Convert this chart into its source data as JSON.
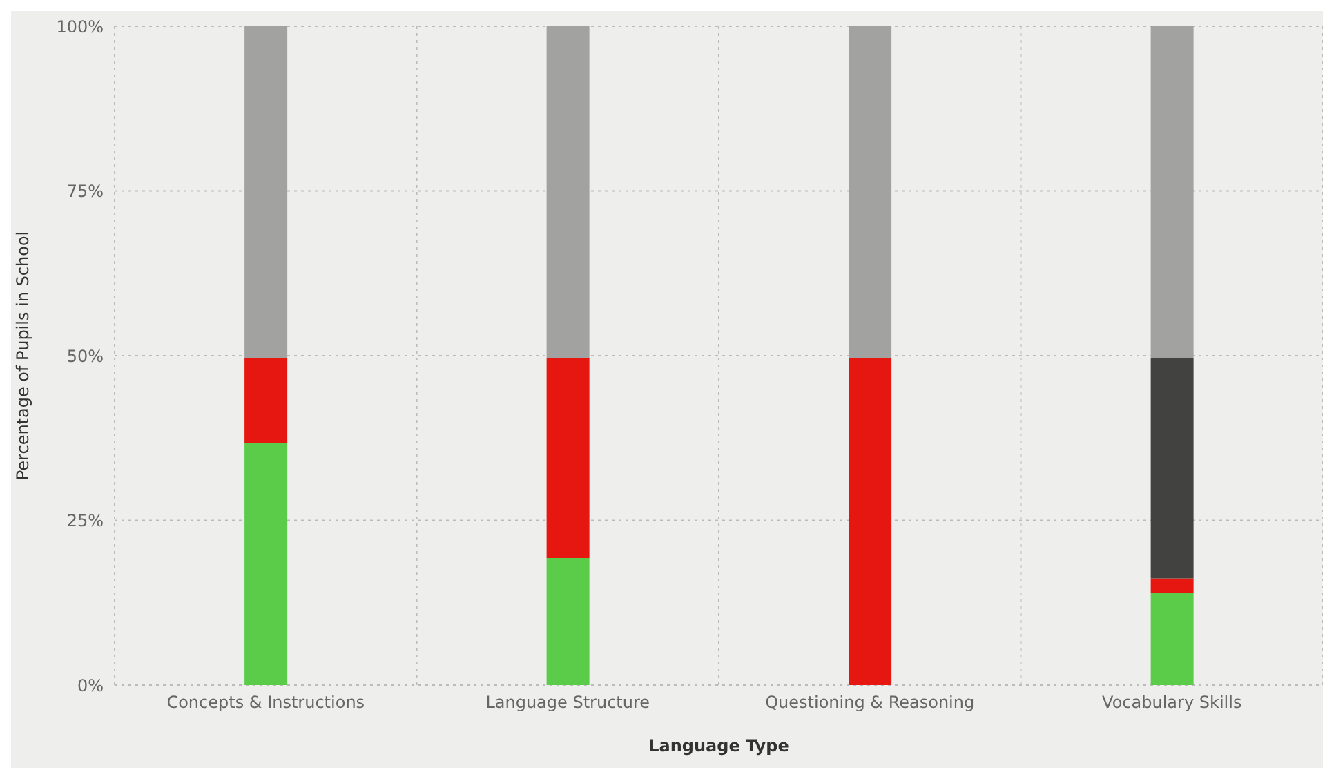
{
  "chart_data": {
    "type": "bar",
    "stacked": true,
    "xlabel": "Language Type",
    "ylabel": "Percentage of Pupils in School",
    "categories": [
      "Concepts & Instructions",
      "Language Structure",
      "Questioning & Reasoning",
      "Vocabulary Skills"
    ],
    "series": [
      {
        "color": "#5bcc4a",
        "values": [
          36.7,
          19.3,
          0,
          14.0
        ]
      },
      {
        "color": "#e61610",
        "values": [
          12.9,
          30.3,
          49.6,
          2.2
        ]
      },
      {
        "color": "#424240",
        "values": [
          0,
          0,
          0,
          33.4
        ]
      },
      {
        "color": "#a2a2a0",
        "values": [
          50.4,
          50.4,
          50.4,
          50.4
        ]
      }
    ],
    "ylim": [
      0,
      100
    ],
    "yticks": [
      {
        "value": 0,
        "label": "0%"
      },
      {
        "value": 25,
        "label": "25%"
      },
      {
        "value": 50,
        "label": "50%"
      },
      {
        "value": 75,
        "label": "75%"
      },
      {
        "value": 100,
        "label": "100%"
      }
    ],
    "grid": true,
    "legend": false
  }
}
